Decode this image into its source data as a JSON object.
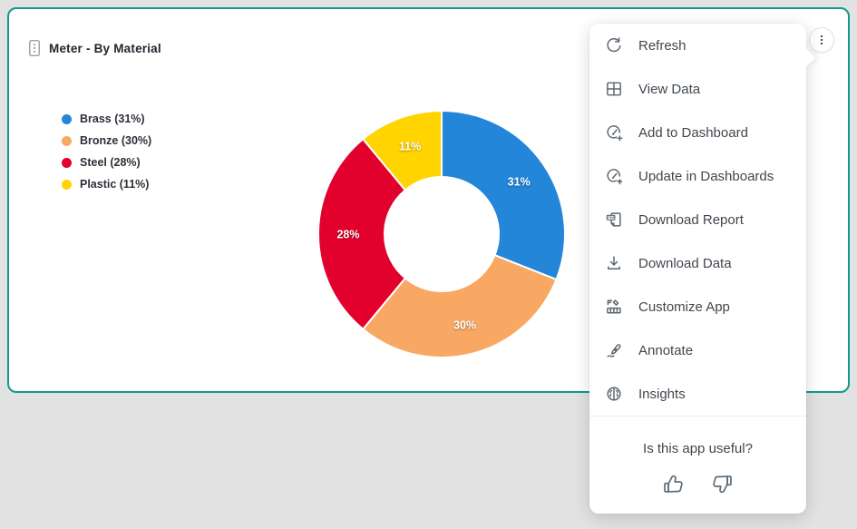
{
  "card": {
    "title": "Meter - By Material"
  },
  "chart_data": {
    "type": "pie",
    "subtype": "donut",
    "title": "Meter - By Material",
    "categories": [
      "Brass",
      "Bronze",
      "Steel",
      "Plastic"
    ],
    "values": [
      31,
      30,
      28,
      11
    ],
    "unit": "%",
    "slice_labels": [
      "31%",
      "30%",
      "28%",
      "11%"
    ],
    "colors": [
      "#2386D9",
      "#F8A862",
      "#E2012D",
      "#FFD400"
    ],
    "legend_position": "left",
    "legend": [
      {
        "label": "Brass (31%)",
        "color": "#2386D9"
      },
      {
        "label": "Bronze (30%)",
        "color": "#F8A862"
      },
      {
        "label": "Steel (28%)",
        "color": "#E2012D"
      },
      {
        "label": "Plastic (11%)",
        "color": "#FFD400"
      }
    ]
  },
  "menu": {
    "items": [
      {
        "id": "refresh",
        "label": "Refresh",
        "icon": "refresh-icon"
      },
      {
        "id": "view-data",
        "label": "View Data",
        "icon": "view-data-icon"
      },
      {
        "id": "add-to-dashboard",
        "label": "Add to Dashboard",
        "icon": "add-to-dashboard-icon"
      },
      {
        "id": "update-in-dashboards",
        "label": "Update in Dashboards",
        "icon": "update-in-dashboards-icon"
      },
      {
        "id": "download-report",
        "label": "Download Report",
        "icon": "download-report-icon"
      },
      {
        "id": "download-data",
        "label": "Download Data",
        "icon": "download-data-icon"
      },
      {
        "id": "customize-app",
        "label": "Customize App",
        "icon": "customize-app-icon"
      },
      {
        "id": "annotate",
        "label": "Annotate",
        "icon": "annotate-icon"
      },
      {
        "id": "insights",
        "label": "Insights",
        "icon": "insights-icon"
      }
    ],
    "feedback": {
      "question": "Is this app useful?"
    }
  },
  "theme": {
    "page_background": "#E2E2E2",
    "card_border": "#0F9A8E",
    "menu_text": "#40474E",
    "icon_color": "#5C6670",
    "kebab_dot_color": "#24465A"
  }
}
